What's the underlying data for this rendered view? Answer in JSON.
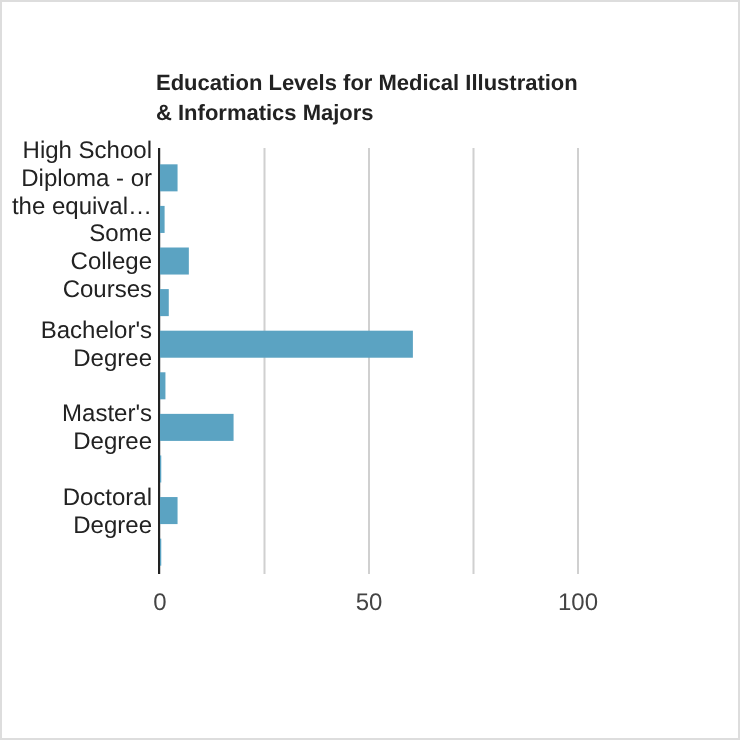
{
  "chart_data": {
    "type": "bar",
    "orientation": "horizontal",
    "title": "Education Levels for Medical Illustration & Informatics Majors",
    "categories": [
      "High School Diploma - or the equival…",
      null,
      "Some College Courses",
      null,
      "Bachelor's Degree",
      null,
      "Master's Degree",
      null,
      "Doctoral Degree",
      null
    ],
    "values": [
      4.2,
      1.1,
      6.9,
      2.1,
      60.5,
      1.3,
      17.6,
      0.3,
      4.2,
      0.3
    ],
    "color": "#5ba3c2",
    "xlim": [
      0,
      100
    ],
    "xticks": [
      0,
      {
        "value": 25,
        "label": null
      },
      50,
      {
        "value": 75,
        "label": null
      },
      100
    ],
    "grid": "x"
  }
}
